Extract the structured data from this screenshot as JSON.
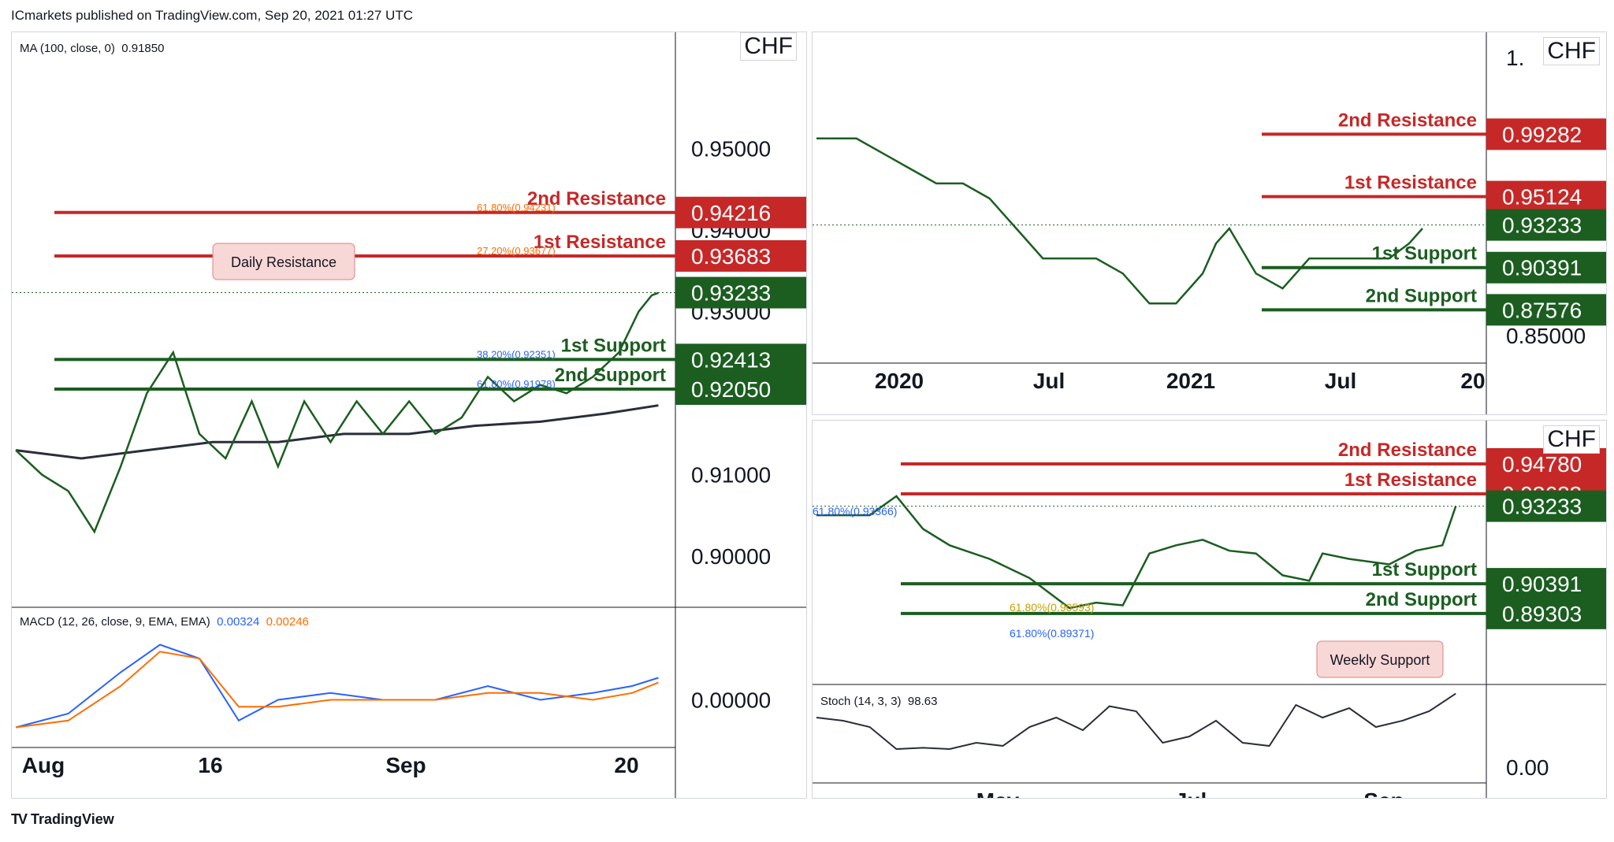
{
  "header": {
    "published_by": "ICmarkets published on TradingView.com, Sep 20, 2021 01:27 UTC"
  },
  "footer": {
    "brand": "TradingView",
    "logo": "TV"
  },
  "colors": {
    "resistance": "#c62828",
    "support": "#1b5e20",
    "price_tag": "#1b5e20",
    "ma": "#2a2e39",
    "macd": "#2962ff",
    "signal": "#ff6d00",
    "stoch": "#2a2e39",
    "fib_blue": "#2962ff",
    "fib_gold": "#c8a000"
  },
  "chart_data": [
    {
      "id": "left",
      "type": "line",
      "title": "",
      "currency": "CHF",
      "indicator_label": "MA (100, close, 0)",
      "indicator_value": "0.91850",
      "y_ticks": [
        "0.95000",
        "0.94000",
        "0.93000",
        "0.91000",
        "0.90000"
      ],
      "y_tick_values": [
        0.95,
        0.94,
        0.93,
        0.91,
        0.9
      ],
      "x_ticks": [
        "Aug",
        "16",
        "Sep",
        "20"
      ],
      "ylim": [
        0.9005,
        0.9575
      ],
      "price": {
        "x": [
          0,
          4,
          8,
          12,
          16,
          20,
          24,
          26,
          28,
          32,
          36,
          40,
          44,
          48,
          52,
          56,
          60,
          64,
          68,
          72,
          76,
          80,
          84,
          88,
          92,
          95,
          97,
          98
        ],
        "y": [
          0.913,
          0.91,
          0.908,
          0.903,
          0.911,
          0.92,
          0.925,
          0.92,
          0.915,
          0.912,
          0.919,
          0.911,
          0.919,
          0.914,
          0.919,
          0.915,
          0.919,
          0.915,
          0.917,
          0.922,
          0.919,
          0.921,
          0.92,
          0.922,
          0.925,
          0.93,
          0.932,
          0.9323
        ]
      },
      "ma": {
        "x": [
          0,
          10,
          20,
          30,
          40,
          50,
          60,
          70,
          80,
          90,
          98
        ],
        "y": [
          0.913,
          0.912,
          0.913,
          0.914,
          0.914,
          0.915,
          0.915,
          0.916,
          0.9165,
          0.9175,
          0.9185
        ]
      },
      "levels": [
        {
          "label": "2nd Resistance",
          "value": "0.94216",
          "y": 0.94216,
          "kind": "resistance",
          "fib": "61.80%(0.94231)"
        },
        {
          "label": "1st Resistance",
          "value": "0.93683",
          "y": 0.93683,
          "kind": "resistance",
          "fib": "27.20%(0.93677)"
        },
        {
          "label": "",
          "value": "0.93233",
          "y": 0.93233,
          "kind": "price"
        },
        {
          "label": "1st Support",
          "value": "0.92413",
          "y": 0.92413,
          "kind": "support",
          "fib": "38.20%(0.92351)"
        },
        {
          "label": "2nd Support",
          "value": "0.92050",
          "y": 0.9205,
          "kind": "support",
          "fib": "61.80%(0.91978)"
        }
      ],
      "callout": "Daily Resistance",
      "macd": {
        "label": "MACD (12, 26, close, 9, EMA, EMA)",
        "macd_value": "0.00324",
        "signal_value": "0.00246",
        "zero_label": "0.00000",
        "x": [
          0,
          8,
          16,
          22,
          28,
          34,
          40,
          48,
          56,
          64,
          72,
          80,
          88,
          94,
          98
        ],
        "macd": [
          -0.004,
          -0.002,
          0.004,
          0.008,
          0.006,
          -0.003,
          0.0,
          0.001,
          0.0,
          0.0,
          0.002,
          0.0,
          0.001,
          0.002,
          0.0032
        ],
        "signal": [
          -0.004,
          -0.003,
          0.002,
          0.007,
          0.006,
          -0.001,
          -0.001,
          0.0,
          0.0,
          0.0,
          0.001,
          0.001,
          0.0,
          0.001,
          0.0025
        ]
      }
    },
    {
      "id": "top-right",
      "type": "line",
      "title": "",
      "currency": "CHF",
      "y_ticks": [
        "1.",
        "0.85000"
      ],
      "x_ticks": [
        "2020",
        "Jul",
        "2021",
        "Jul",
        "20"
      ],
      "ylim": [
        0.835,
        1.045
      ],
      "price": {
        "x": [
          0,
          6,
          10,
          14,
          18,
          22,
          26,
          30,
          34,
          38,
          42,
          46,
          50,
          54,
          58,
          60,
          62,
          66,
          70,
          74,
          78,
          82,
          86,
          89,
          91
        ],
        "y": [
          0.99,
          0.99,
          0.98,
          0.97,
          0.96,
          0.96,
          0.95,
          0.93,
          0.91,
          0.91,
          0.91,
          0.9,
          0.88,
          0.88,
          0.9,
          0.92,
          0.93,
          0.9,
          0.89,
          0.91,
          0.91,
          0.91,
          0.91,
          0.92,
          0.93
        ]
      },
      "levels": [
        {
          "label": "2nd Resistance",
          "value": "0.99282",
          "y": 0.99282,
          "kind": "resistance"
        },
        {
          "label": "1st Resistance",
          "value": "0.95124",
          "y": 0.95124,
          "kind": "resistance"
        },
        {
          "label": "",
          "value": "0.93233",
          "y": 0.93233,
          "kind": "price"
        },
        {
          "label": "1st Support",
          "value": "0.90391",
          "y": 0.90391,
          "kind": "support"
        },
        {
          "label": "2nd Support",
          "value": "0.87576",
          "y": 0.87576,
          "kind": "support"
        }
      ]
    },
    {
      "id": "bottom-right",
      "type": "line",
      "title": "",
      "currency": "CHF",
      "y_ticks": [
        "0.94780"
      ],
      "x_ticks": [
        "May",
        "Jul",
        "Sep"
      ],
      "ylim": [
        0.88,
        0.955
      ],
      "fib": [
        "61.80%(0.93366)",
        "61.80%(0.90593)",
        "61.80%(0.89371)"
      ],
      "price": {
        "x": [
          0,
          8,
          12,
          16,
          20,
          26,
          32,
          38,
          42,
          46,
          50,
          54,
          58,
          62,
          66,
          70,
          74,
          76,
          80,
          86,
          90,
          94,
          96
        ],
        "y": [
          0.929,
          0.929,
          0.936,
          0.924,
          0.918,
          0.913,
          0.906,
          0.895,
          0.897,
          0.896,
          0.915,
          0.918,
          0.92,
          0.916,
          0.915,
          0.907,
          0.905,
          0.915,
          0.913,
          0.911,
          0.916,
          0.918,
          0.9323
        ]
      },
      "levels": [
        {
          "label": "2nd Resistance",
          "value": "0.94780",
          "y": 0.9478,
          "kind": "resistance"
        },
        {
          "label": "1st Resistance",
          "value": "0.93683",
          "y": 0.93683,
          "kind": "resistance"
        },
        {
          "label": "",
          "value": "0.93233",
          "y": 0.93233,
          "kind": "price"
        },
        {
          "label": "1st Support",
          "value": "0.90391",
          "y": 0.90391,
          "kind": "support"
        },
        {
          "label": "2nd Support",
          "value": "0.89303",
          "y": 0.89303,
          "kind": "support"
        }
      ],
      "callout": "Weekly Support",
      "stoch": {
        "label": "Stoch (14, 3, 3)",
        "value": "98.63",
        "zero_label": "0.00",
        "x": [
          0,
          4,
          8,
          12,
          16,
          20,
          24,
          28,
          32,
          36,
          40,
          44,
          48,
          52,
          56,
          60,
          64,
          68,
          72,
          76,
          80,
          84,
          88,
          92,
          96
        ],
        "y": [
          60,
          55,
          45,
          10,
          12,
          10,
          20,
          15,
          45,
          60,
          40,
          78,
          70,
          20,
          30,
          55,
          20,
          15,
          80,
          60,
          75,
          45,
          55,
          70,
          98
        ]
      }
    }
  ]
}
